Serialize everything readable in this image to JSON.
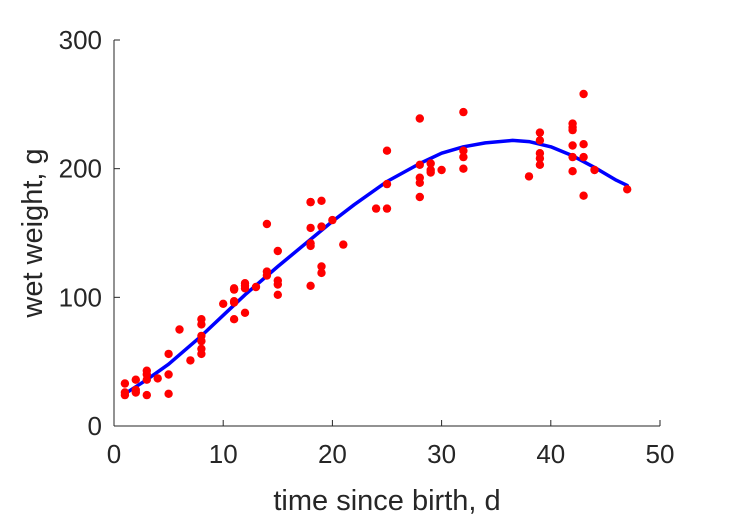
{
  "chart_data": {
    "type": "scatter",
    "title": "",
    "xlabel": "time since birth, d",
    "ylabel": "wet weight, g",
    "xlim": [
      0,
      50
    ],
    "ylim": [
      0,
      300
    ],
    "xticks": [
      "0",
      "10",
      "20",
      "30",
      "40",
      "50"
    ],
    "yticks": [
      "0",
      "100",
      "200",
      "300"
    ],
    "grid": false,
    "legend": "none",
    "series": [
      {
        "type": "scatter",
        "color": "#ff0000",
        "points": [
          [
            1,
            24
          ],
          [
            1,
            26
          ],
          [
            1,
            33
          ],
          [
            2,
            26
          ],
          [
            2,
            28
          ],
          [
            2,
            36
          ],
          [
            3,
            24
          ],
          [
            3,
            36
          ],
          [
            3,
            40
          ],
          [
            3,
            43
          ],
          [
            4,
            37
          ],
          [
            5,
            25
          ],
          [
            5,
            40
          ],
          [
            5,
            56
          ],
          [
            6,
            75
          ],
          [
            7,
            51
          ],
          [
            8,
            56
          ],
          [
            8,
            60
          ],
          [
            8,
            66
          ],
          [
            8,
            70
          ],
          [
            8,
            79
          ],
          [
            8,
            83
          ],
          [
            10,
            95
          ],
          [
            11,
            83
          ],
          [
            11,
            96
          ],
          [
            11,
            97
          ],
          [
            11,
            106
          ],
          [
            11,
            107
          ],
          [
            12,
            88
          ],
          [
            12,
            107
          ],
          [
            12,
            109
          ],
          [
            12,
            111
          ],
          [
            13,
            108
          ],
          [
            14,
            117
          ],
          [
            14,
            120
          ],
          [
            14,
            157
          ],
          [
            15,
            102
          ],
          [
            15,
            110
          ],
          [
            15,
            113
          ],
          [
            15,
            136
          ],
          [
            18,
            109
          ],
          [
            18,
            140
          ],
          [
            18,
            142
          ],
          [
            18,
            154
          ],
          [
            18,
            174
          ],
          [
            18,
            174
          ],
          [
            19,
            119
          ],
          [
            19,
            124
          ],
          [
            19,
            155
          ],
          [
            19,
            175
          ],
          [
            20,
            160
          ],
          [
            21,
            141
          ],
          [
            24,
            169
          ],
          [
            25,
            169
          ],
          [
            25,
            188
          ],
          [
            25,
            214
          ],
          [
            28,
            178
          ],
          [
            28,
            189
          ],
          [
            28,
            193
          ],
          [
            28,
            203
          ],
          [
            28,
            239
          ],
          [
            29,
            197
          ],
          [
            29,
            199
          ],
          [
            29,
            204
          ],
          [
            30,
            199
          ],
          [
            32,
            200
          ],
          [
            32,
            209
          ],
          [
            32,
            214
          ],
          [
            32,
            244
          ],
          [
            38,
            194
          ],
          [
            39,
            203
          ],
          [
            39,
            208
          ],
          [
            39,
            212
          ],
          [
            39,
            222
          ],
          [
            39,
            228
          ],
          [
            42,
            198
          ],
          [
            42,
            209
          ],
          [
            42,
            218
          ],
          [
            42,
            230
          ],
          [
            42,
            232
          ],
          [
            42,
            235
          ],
          [
            43,
            179
          ],
          [
            43,
            209
          ],
          [
            43,
            219
          ],
          [
            43,
            258
          ],
          [
            44,
            199
          ],
          [
            47,
            184
          ]
        ]
      },
      {
        "type": "line",
        "color": "#0000ff",
        "points": [
          [
            1,
            25
          ],
          [
            3,
            36
          ],
          [
            5,
            48
          ],
          [
            8,
            70
          ],
          [
            10,
            86
          ],
          [
            12,
            102
          ],
          [
            15,
            124
          ],
          [
            18,
            145
          ],
          [
            20,
            159
          ],
          [
            22,
            172
          ],
          [
            25,
            190
          ],
          [
            28,
            204
          ],
          [
            30,
            212
          ],
          [
            32,
            217
          ],
          [
            34,
            220
          ],
          [
            36.5,
            222
          ],
          [
            38,
            221
          ],
          [
            40,
            217
          ],
          [
            42,
            210
          ],
          [
            44,
            201
          ],
          [
            46,
            191
          ],
          [
            47,
            187
          ]
        ]
      }
    ]
  }
}
